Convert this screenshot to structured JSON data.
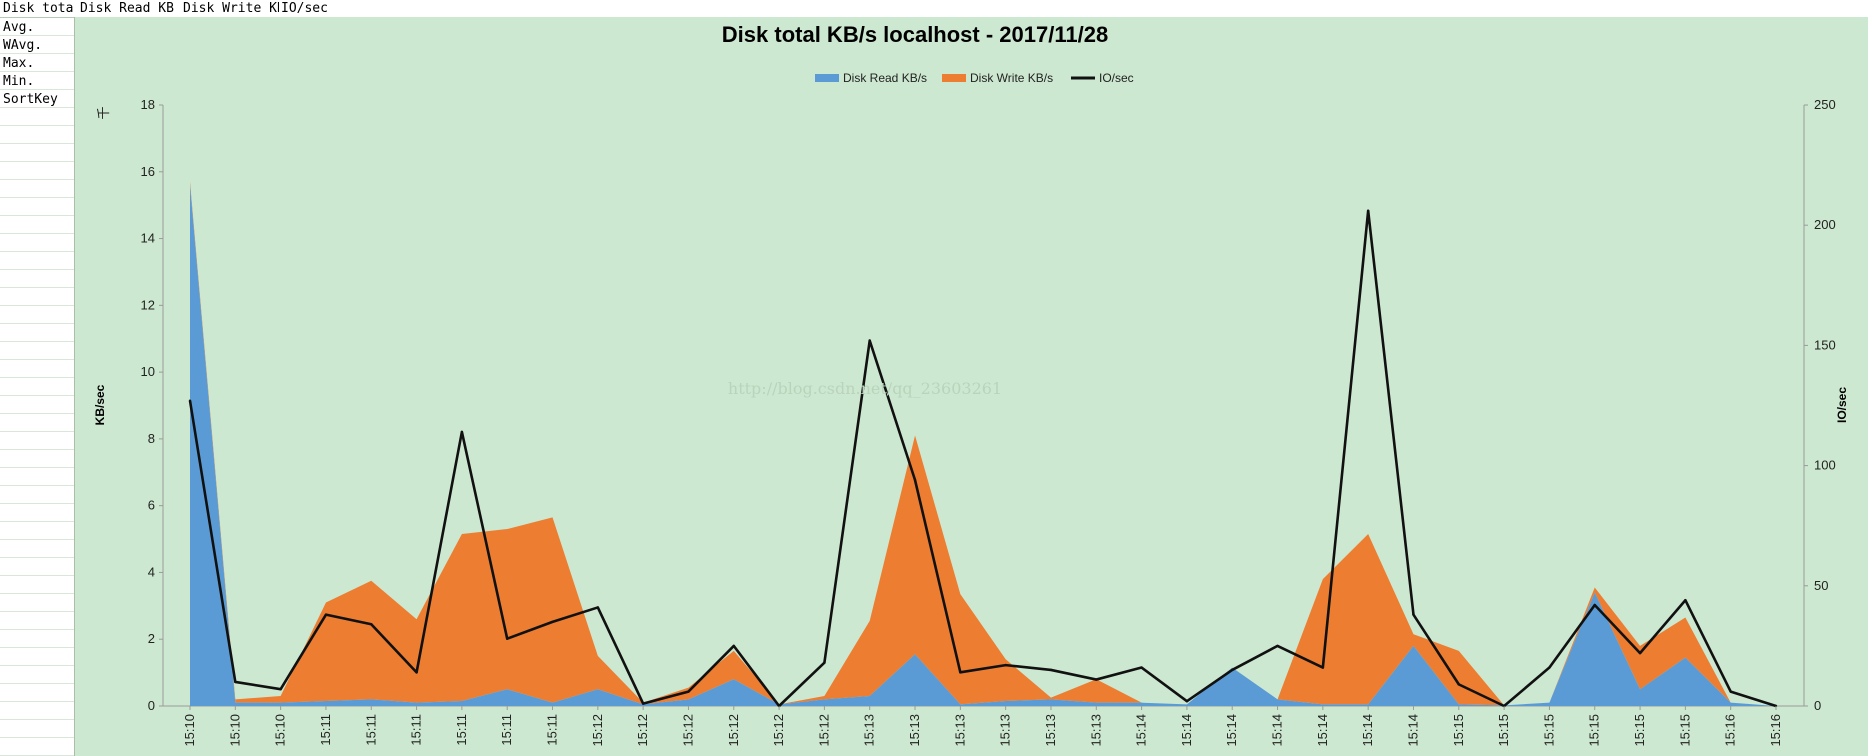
{
  "header_cells": [
    "Disk tota",
    "Disk Read KB",
    "Disk Write KB",
    "IO/sec"
  ],
  "row_labels": [
    "Avg.",
    "WAvg.",
    "Max.",
    "Min.",
    "SortKey"
  ],
  "chart_data": {
    "type": "area",
    "title": "Disk total KB/s localhost - 2017/11/28",
    "ylabel": "KB/sec",
    "y2label": "IO/sec",
    "yunit": "千",
    "ylim": [
      0,
      18
    ],
    "y2lim": [
      0,
      250
    ],
    "yticks": [
      0,
      2,
      4,
      6,
      8,
      10,
      12,
      14,
      16,
      18
    ],
    "y2ticks": [
      0,
      50,
      100,
      150,
      200,
      250
    ],
    "legend_position": "top",
    "watermark": "http://blog.csdn.net/qq_23603261",
    "categories": [
      "15:10",
      "15:10",
      "15:10",
      "15:11",
      "15:11",
      "15:11",
      "15:11",
      "15:11",
      "15:11",
      "15:12",
      "15:12",
      "15:12",
      "15:12",
      "15:12",
      "15:12",
      "15:13",
      "15:13",
      "15:13",
      "15:13",
      "15:13",
      "15:13",
      "15:14",
      "15:14",
      "15:14",
      "15:14",
      "15:14",
      "15:14",
      "15:14",
      "15:15",
      "15:15",
      "15:15",
      "15:15",
      "15:15",
      "15:15",
      "15:16",
      "15:16"
    ],
    "series": [
      {
        "name": "Disk Read KB/s",
        "type": "area",
        "axis": "left",
        "color": "#5b9bd5",
        "values": [
          15.6,
          0.1,
          0.1,
          0.15,
          0.2,
          0.1,
          0.15,
          0.5,
          0.1,
          0.5,
          0.05,
          0.2,
          0.8,
          0.05,
          0.2,
          0.3,
          1.55,
          0.05,
          0.15,
          0.2,
          0.1,
          0.1,
          0.05,
          1.15,
          0.2,
          0.05,
          0.05,
          1.8,
          0.05,
          0.02,
          0.1,
          3.4,
          0.5,
          1.45,
          0.1,
          0.0
        ]
      },
      {
        "name": "Disk Write KB/s",
        "type": "area",
        "axis": "left",
        "color": "#ed7d31",
        "values": [
          0.1,
          0.1,
          0.2,
          2.95,
          3.55,
          2.5,
          5.0,
          4.8,
          5.55,
          1.0,
          0.05,
          0.35,
          0.85,
          0.0,
          0.1,
          2.25,
          6.55,
          3.3,
          1.25,
          0.05,
          0.7,
          0.0,
          0.0,
          0.0,
          0.0,
          3.75,
          5.1,
          0.35,
          1.6,
          0.0,
          0.0,
          0.15,
          1.3,
          1.2,
          0.0,
          0.0
        ]
      },
      {
        "name": "IO/sec",
        "type": "line",
        "axis": "right",
        "color": "#111111",
        "values": [
          127,
          10,
          7,
          38,
          34,
          14,
          114,
          28,
          35,
          41,
          1,
          6,
          25,
          0,
          18,
          152,
          94,
          14,
          17,
          15,
          11,
          16,
          2,
          15,
          25,
          16,
          206,
          38,
          9,
          0,
          16,
          42,
          22,
          44,
          6,
          0
        ]
      }
    ]
  }
}
